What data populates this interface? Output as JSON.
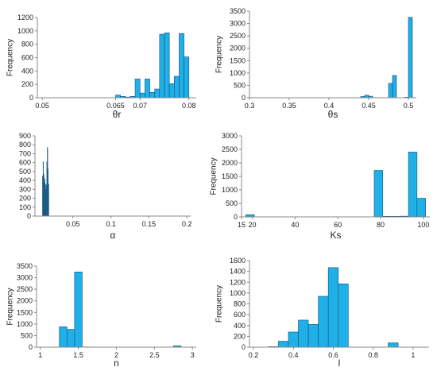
{
  "chart_data": [
    {
      "type": "bar",
      "ylabel": "Frequency",
      "xlabel": "θr",
      "xlim": [
        0.049,
        0.0815
      ],
      "ylim": [
        0,
        1200
      ],
      "yticks": [
        0,
        200,
        400,
        600,
        800,
        1000,
        1200
      ],
      "xticks": [
        "0.05",
        "0.065",
        "0.07",
        "0.08"
      ],
      "xtick_values": [
        0.05,
        0.065,
        0.07,
        0.08
      ],
      "bin_width": 0.001,
      "bins": [
        {
          "start": 0.065,
          "value": 40
        },
        {
          "start": 0.066,
          "value": 20
        },
        {
          "start": 0.067,
          "value": 10
        },
        {
          "start": 0.068,
          "value": 20
        },
        {
          "start": 0.069,
          "value": 280
        },
        {
          "start": 0.07,
          "value": 70
        },
        {
          "start": 0.071,
          "value": 280
        },
        {
          "start": 0.072,
          "value": 80
        },
        {
          "start": 0.073,
          "value": 130
        },
        {
          "start": 0.074,
          "value": 950
        },
        {
          "start": 0.075,
          "value": 970
        },
        {
          "start": 0.076,
          "value": 210
        },
        {
          "start": 0.077,
          "value": 320
        },
        {
          "start": 0.078,
          "value": 960
        },
        {
          "start": 0.079,
          "value": 610
        }
      ]
    },
    {
      "type": "bar",
      "ylabel": "Frequency",
      "xlabel": "θs",
      "xlim": [
        0.3,
        0.51
      ],
      "ylim": [
        0,
        3500
      ],
      "yticks": [
        0,
        500,
        1000,
        1500,
        2000,
        2500,
        3000,
        3500
      ],
      "xticks": [
        "0.3",
        "0.35",
        "0.4",
        "0.45",
        "0.5"
      ],
      "xtick_values": [
        0.3,
        0.35,
        0.4,
        0.45,
        0.5
      ],
      "bin_width": 0.005,
      "bins": [
        {
          "start": 0.44,
          "value": 50
        },
        {
          "start": 0.445,
          "value": 100
        },
        {
          "start": 0.45,
          "value": 60
        },
        {
          "start": 0.475,
          "value": 580
        },
        {
          "start": 0.48,
          "value": 900
        },
        {
          "start": 0.495,
          "value": 20
        },
        {
          "start": 0.5,
          "value": 3250
        }
      ]
    },
    {
      "type": "bar",
      "ylabel": "",
      "xlabel": "α",
      "xlim": [
        0,
        0.205
      ],
      "ylim": [
        0,
        900
      ],
      "yticks": [
        0,
        100,
        200,
        300,
        400,
        500,
        600,
        700,
        800,
        900
      ],
      "xticks": [
        "0.05",
        "0.1",
        "0.15",
        "0.2"
      ],
      "xtick_values": [
        0.05,
        0.1,
        0.15,
        0.2
      ],
      "bin_width": 0.00065,
      "bins": [
        {
          "start": 0.0098,
          "value": 450
        },
        {
          "start": 0.0105,
          "value": 610
        },
        {
          "start": 0.0112,
          "value": 470
        },
        {
          "start": 0.0119,
          "value": 380
        },
        {
          "start": 0.0126,
          "value": 420
        },
        {
          "start": 0.0133,
          "value": 360
        },
        {
          "start": 0.014,
          "value": 300
        },
        {
          "start": 0.0147,
          "value": 350
        },
        {
          "start": 0.0154,
          "value": 610
        },
        {
          "start": 0.0161,
          "value": 770
        },
        {
          "start": 0.0168,
          "value": 530
        },
        {
          "start": 0.0175,
          "value": 360
        }
      ]
    },
    {
      "type": "bar",
      "ylabel": "Frequency",
      "xlabel": "Ks",
      "xlim": [
        15,
        103
      ],
      "ylim": [
        0,
        3000
      ],
      "yticks": [
        0,
        500,
        1000,
        1500,
        2000,
        2500,
        3000
      ],
      "xticks": [
        "15",
        "20",
        "40",
        "60",
        "80",
        "100"
      ],
      "xtick_values": [
        15,
        20,
        40,
        60,
        80,
        100
      ],
      "bin_width": 4,
      "bins": [
        {
          "start": 17,
          "value": 80
        },
        {
          "start": 21,
          "value": 5
        },
        {
          "start": 53,
          "value": 5
        },
        {
          "start": 77,
          "value": 1720
        },
        {
          "start": 81,
          "value": 20
        },
        {
          "start": 85,
          "value": 20
        },
        {
          "start": 89,
          "value": 25
        },
        {
          "start": 93,
          "value": 2400
        },
        {
          "start": 97,
          "value": 690
        }
      ]
    },
    {
      "type": "bar",
      "ylabel": "Frequency",
      "xlabel": "n",
      "xlim": [
        0.95,
        3.05
      ],
      "ylim": [
        0,
        3500
      ],
      "yticks": [
        0,
        500,
        1000,
        1500,
        2000,
        2500,
        3000,
        3500
      ],
      "xticks": [
        "1",
        "1.5",
        "2",
        "2.5",
        "3"
      ],
      "xtick_values": [
        1,
        1.5,
        2,
        2.5,
        3
      ],
      "bin_width": 0.1,
      "bins": [
        {
          "start": 1.25,
          "value": 880
        },
        {
          "start": 1.35,
          "value": 770
        },
        {
          "start": 1.45,
          "value": 3250
        },
        {
          "start": 1.55,
          "value": 10
        },
        {
          "start": 2.75,
          "value": 60
        }
      ]
    },
    {
      "type": "bar",
      "ylabel": "Frequency",
      "xlabel": "l",
      "xlim": [
        0.18,
        1.08
      ],
      "ylim": [
        0,
        1600
      ],
      "yticks": [
        0,
        200,
        400,
        600,
        800,
        1000,
        1200,
        1400,
        1600
      ],
      "xticks": [
        "0.2",
        "0.4",
        "0.6",
        "0.8",
        "1"
      ],
      "xtick_values": [
        0.2,
        0.4,
        0.6,
        0.8,
        1
      ],
      "bin_width": 0.05,
      "bins": [
        {
          "start": 0.275,
          "value": 10
        },
        {
          "start": 0.325,
          "value": 110
        },
        {
          "start": 0.375,
          "value": 280
        },
        {
          "start": 0.425,
          "value": 500
        },
        {
          "start": 0.475,
          "value": 420
        },
        {
          "start": 0.525,
          "value": 940
        },
        {
          "start": 0.575,
          "value": 1470
        },
        {
          "start": 0.625,
          "value": 1170
        },
        {
          "start": 0.875,
          "value": 80
        }
      ]
    }
  ],
  "colors": {
    "bar_fill": "#1fb0e8",
    "bar_stroke": "#1a4d7a",
    "alpha_bar_fill": "#1a6a90",
    "axis": "#888888",
    "text": "#222222"
  }
}
